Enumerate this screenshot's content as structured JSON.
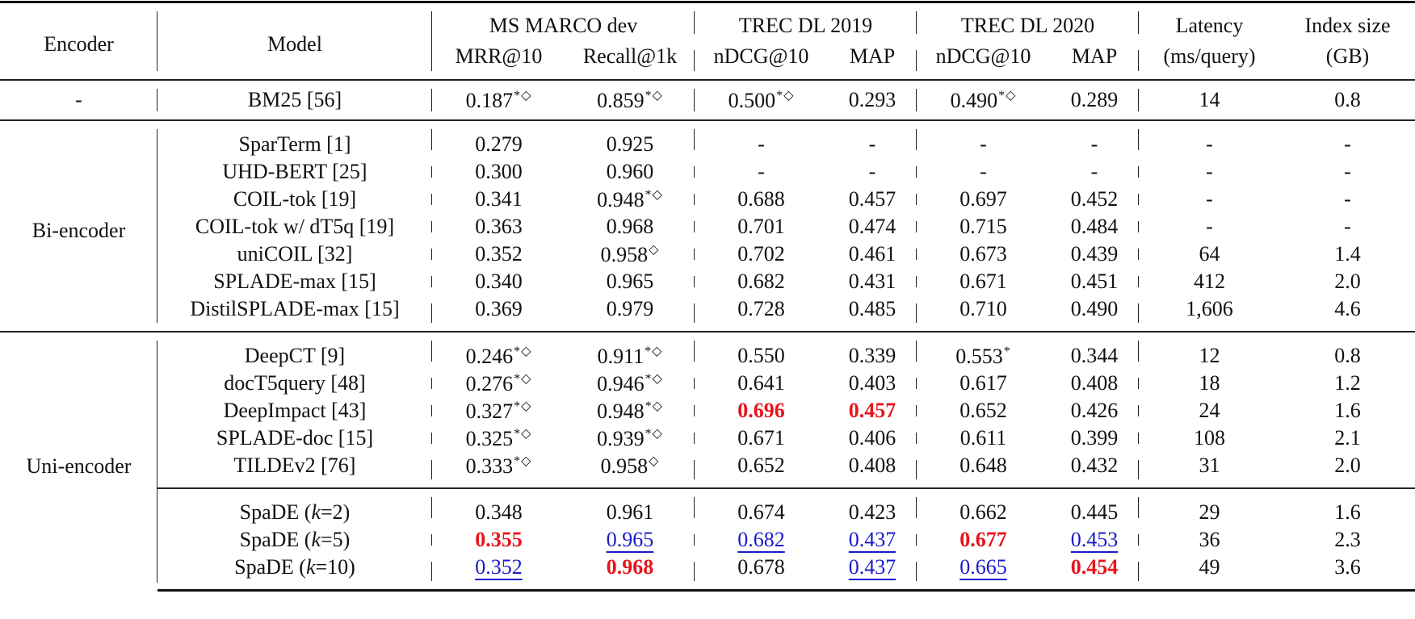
{
  "table": {
    "header": {
      "encoder": "Encoder",
      "model": "Model",
      "groups": {
        "msmarco": "MS MARCO dev",
        "dl2019": "TREC DL 2019",
        "dl2020": "TREC DL 2020",
        "latency_top": "Latency",
        "index_top": "Index size"
      },
      "sub": {
        "mrr10": "MRR@10",
        "recall1k": "Recall@1k",
        "ndcg19": "nDCG@10",
        "map19": "MAP",
        "ndcg20": "nDCG@10",
        "map20": "MAP",
        "latency_unit": "(ms/query)",
        "index_unit": "(GB)"
      }
    },
    "bm25": {
      "encoder": "-",
      "model": "BM25 [56]",
      "mrr10": "0.187",
      "mrr10_sup": "*◇",
      "recall1k": "0.859",
      "recall1k_sup": "*◇",
      "ndcg19": "0.500",
      "ndcg19_sup": "*◇",
      "map19": "0.293",
      "ndcg20": "0.490",
      "ndcg20_sup": "*◇",
      "map20": "0.289",
      "latency": "14",
      "index": "0.8"
    },
    "bi_encoder": {
      "label": "Bi-encoder",
      "rows": [
        {
          "model": "SparTerm [1]",
          "mrr10": "0.279",
          "recall1k": "0.925",
          "recall1k_sup": "",
          "ndcg19": "-",
          "map19": "-",
          "ndcg20": "-",
          "map20": "-",
          "latency": "-",
          "index": "-"
        },
        {
          "model": "UHD-BERT [25]",
          "mrr10": "0.300",
          "recall1k": "0.960",
          "recall1k_sup": "",
          "ndcg19": "-",
          "map19": "-",
          "ndcg20": "-",
          "map20": "-",
          "latency": "-",
          "index": "-"
        },
        {
          "model": "COIL-tok [19]",
          "mrr10": "0.341",
          "recall1k": "0.948",
          "recall1k_sup": "*◇",
          "ndcg19": "0.688",
          "map19": "0.457",
          "ndcg20": "0.697",
          "map20": "0.452",
          "latency": "-",
          "index": "-"
        },
        {
          "model": "COIL-tok w/ dT5q [19]",
          "mrr10": "0.363",
          "recall1k": "0.968",
          "recall1k_sup": "",
          "ndcg19": "0.701",
          "map19": "0.474",
          "ndcg20": "0.715",
          "map20": "0.484",
          "latency": "-",
          "index": "-"
        },
        {
          "model": "uniCOIL [32]",
          "mrr10": "0.352",
          "recall1k": "0.958",
          "recall1k_sup": "◇",
          "ndcg19": "0.702",
          "map19": "0.461",
          "ndcg20": "0.673",
          "map20": "0.439",
          "latency": "64",
          "index": "1.4"
        },
        {
          "model": "SPLADE-max [15]",
          "mrr10": "0.340",
          "recall1k": "0.965",
          "recall1k_sup": "",
          "ndcg19": "0.682",
          "map19": "0.431",
          "ndcg20": "0.671",
          "map20": "0.451",
          "latency": "412",
          "index": "2.0"
        },
        {
          "model": "DistilSPLADE-max [15]",
          "mrr10": "0.369",
          "recall1k": "0.979",
          "recall1k_sup": "",
          "ndcg19": "0.728",
          "map19": "0.485",
          "ndcg20": "0.710",
          "map20": "0.490",
          "latency": "1,606",
          "index": "4.6"
        }
      ]
    },
    "uni_encoder": {
      "label": "Uni-encoder",
      "rows": [
        {
          "model": "DeepCT [9]",
          "mrr10": "0.246",
          "mrr10_sup": "*◇",
          "recall1k": "0.911",
          "recall1k_sup": "*◇",
          "ndcg19": "0.550",
          "map19": "0.339",
          "ndcg20": "0.553",
          "ndcg20_sup": "*",
          "map20": "0.344",
          "latency": "12",
          "index": "0.8"
        },
        {
          "model": "docT5query [48]",
          "mrr10": "0.276",
          "mrr10_sup": "*◇",
          "recall1k": "0.946",
          "recall1k_sup": "*◇",
          "ndcg19": "0.641",
          "map19": "0.403",
          "ndcg20": "0.617",
          "ndcg20_sup": "",
          "map20": "0.408",
          "latency": "18",
          "index": "1.2"
        },
        {
          "model": "DeepImpact [43]",
          "mrr10": "0.327",
          "mrr10_sup": "*◇",
          "recall1k": "0.948",
          "recall1k_sup": "*◇",
          "ndcg19": "0.696",
          "map19": "0.457",
          "ndcg20": "0.652",
          "ndcg20_sup": "",
          "map20": "0.426",
          "latency": "24",
          "index": "1.6"
        },
        {
          "model": "SPLADE-doc [15]",
          "mrr10": "0.325",
          "mrr10_sup": "*◇",
          "recall1k": "0.939",
          "recall1k_sup": "*◇",
          "ndcg19": "0.671",
          "map19": "0.406",
          "ndcg20": "0.611",
          "ndcg20_sup": "",
          "map20": "0.399",
          "latency": "108",
          "index": "2.1"
        },
        {
          "model": "TILDEv2 [76]",
          "mrr10": "0.333",
          "mrr10_sup": "*◇",
          "recall1k": "0.958",
          "recall1k_sup": "◇",
          "ndcg19": "0.652",
          "map19": "0.408",
          "ndcg20": "0.648",
          "ndcg20_sup": "",
          "map20": "0.432",
          "latency": "31",
          "index": "2.0"
        }
      ],
      "spade": [
        {
          "model_prefix": "SpaDE (",
          "k": "k",
          "model_suffix": "=2)",
          "mrr10": "0.348",
          "recall1k": "0.961",
          "ndcg19": "0.674",
          "map19": "0.423",
          "ndcg20": "0.662",
          "map20": "0.445",
          "latency": "29",
          "index": "1.6"
        },
        {
          "model_prefix": "SpaDE (",
          "k": "k",
          "model_suffix": "=5)",
          "mrr10": "0.355",
          "recall1k": "0.965",
          "ndcg19": "0.682",
          "map19": "0.437",
          "ndcg20": "0.677",
          "map20": "0.453",
          "latency": "36",
          "index": "2.3"
        },
        {
          "model_prefix": "SpaDE (",
          "k": "k",
          "model_suffix": "=10)",
          "mrr10": "0.352",
          "recall1k": "0.968",
          "ndcg19": "0.678",
          "map19": "0.437",
          "ndcg20": "0.665",
          "map20": "0.454",
          "latency": "49",
          "index": "3.6"
        }
      ]
    },
    "colors": {
      "best": "#e8141b",
      "second_best": "#1a1acc",
      "text": "#111111"
    }
  }
}
